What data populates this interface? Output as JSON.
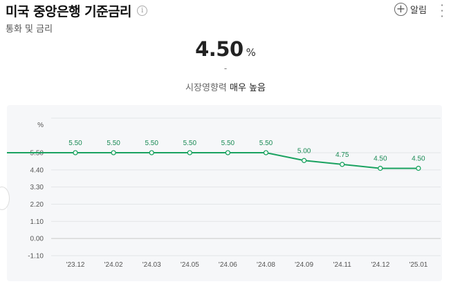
{
  "header": {
    "title": "미국 중앙은행 기준금리",
    "info_icon": "info-icon",
    "subtitle": "통화 및 금리",
    "alarm_label": "알림",
    "alarm_icon": "plus-circle-icon",
    "more_icon": "vertical-ellipsis-icon"
  },
  "summary": {
    "value": "4.50",
    "unit": "%",
    "change": "-",
    "impact_label": "시장영향력",
    "impact_value": "매우 높음"
  },
  "colors": {
    "line": "#1aa260",
    "chart_bg": "#f6f7f9"
  },
  "chart_data": {
    "type": "line",
    "y_unit": "%",
    "categories": [
      "'23.12",
      "'24.02",
      "'24.03",
      "'24.05",
      "'24.06",
      "'24.08",
      "'24.09",
      "'24.11",
      "'24.12",
      "'25.01"
    ],
    "values": [
      5.5,
      5.5,
      5.5,
      5.5,
      5.5,
      5.5,
      5.0,
      4.75,
      4.5,
      4.5
    ],
    "data_labels": [
      "5.50",
      "5.50",
      "5.50",
      "5.50",
      "5.50",
      "5.50",
      "5.00",
      "4.75",
      "4.50",
      "4.50"
    ],
    "y_ticks": [
      5.5,
      4.4,
      3.3,
      2.2,
      1.1,
      0.0,
      -1.1
    ],
    "y_tick_labels": [
      "5.50",
      "4.40",
      "3.30",
      "2.20",
      "1.10",
      "0.00",
      "-1.10"
    ],
    "ylim": [
      -1.1,
      5.5
    ],
    "grid": true
  }
}
